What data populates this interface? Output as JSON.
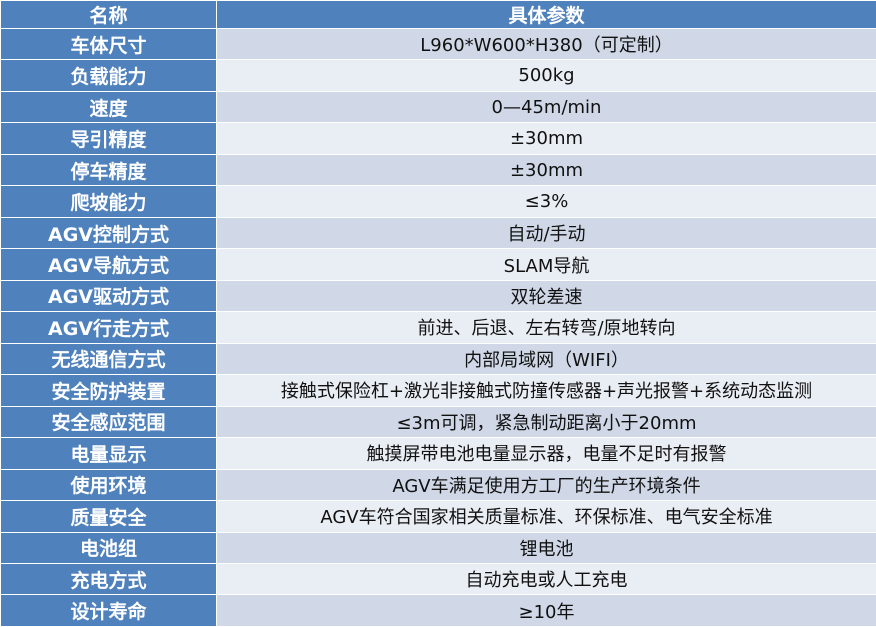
{
  "header": {
    "name_label": "名称",
    "value_label": "具体参数"
  },
  "rows": [
    {
      "name": "车体尺寸",
      "value": "L960*W600*H380（可定制）"
    },
    {
      "name": "负载能力",
      "value": "500kg"
    },
    {
      "name": "速度",
      "value": "0—45m/min"
    },
    {
      "name": "导引精度",
      "value": "±30mm"
    },
    {
      "name": "停车精度",
      "value": "±30mm"
    },
    {
      "name": "爬坡能力",
      "value": "≤3%"
    },
    {
      "name": "AGV控制方式",
      "value": "自动/手动"
    },
    {
      "name": "AGV导航方式",
      "value": "SLAM导航"
    },
    {
      "name": "AGV驱动方式",
      "value": "双轮差速"
    },
    {
      "name": "AGV行走方式",
      "value": "前进、后退、左右转弯/原地转向"
    },
    {
      "name": "无线通信方式",
      "value": "内部局域网（WIFI）"
    },
    {
      "name": "安全防护装置",
      "value": "接触式保险杠+激光非接触式防撞传感器+声光报警+系统动态监测"
    },
    {
      "name": "安全感应范围",
      "value": "≤3m可调，紧急制动距离小于20mm"
    },
    {
      "name": "电量显示",
      "value": "触摸屏带电池电量显示器，电量不足时有报警"
    },
    {
      "name": "使用环境",
      "value": "AGV车满足使用方工厂的生产环境条件"
    },
    {
      "name": "质量安全",
      "value": "AGV车符合国家相关质量标准、环保标准、电气安全标准"
    },
    {
      "name": "电池组",
      "value": "锂电池"
    },
    {
      "name": "充电方式",
      "value": "自动充电或人工充电"
    },
    {
      "name": "设计寿命",
      "value": "≥10年"
    }
  ]
}
